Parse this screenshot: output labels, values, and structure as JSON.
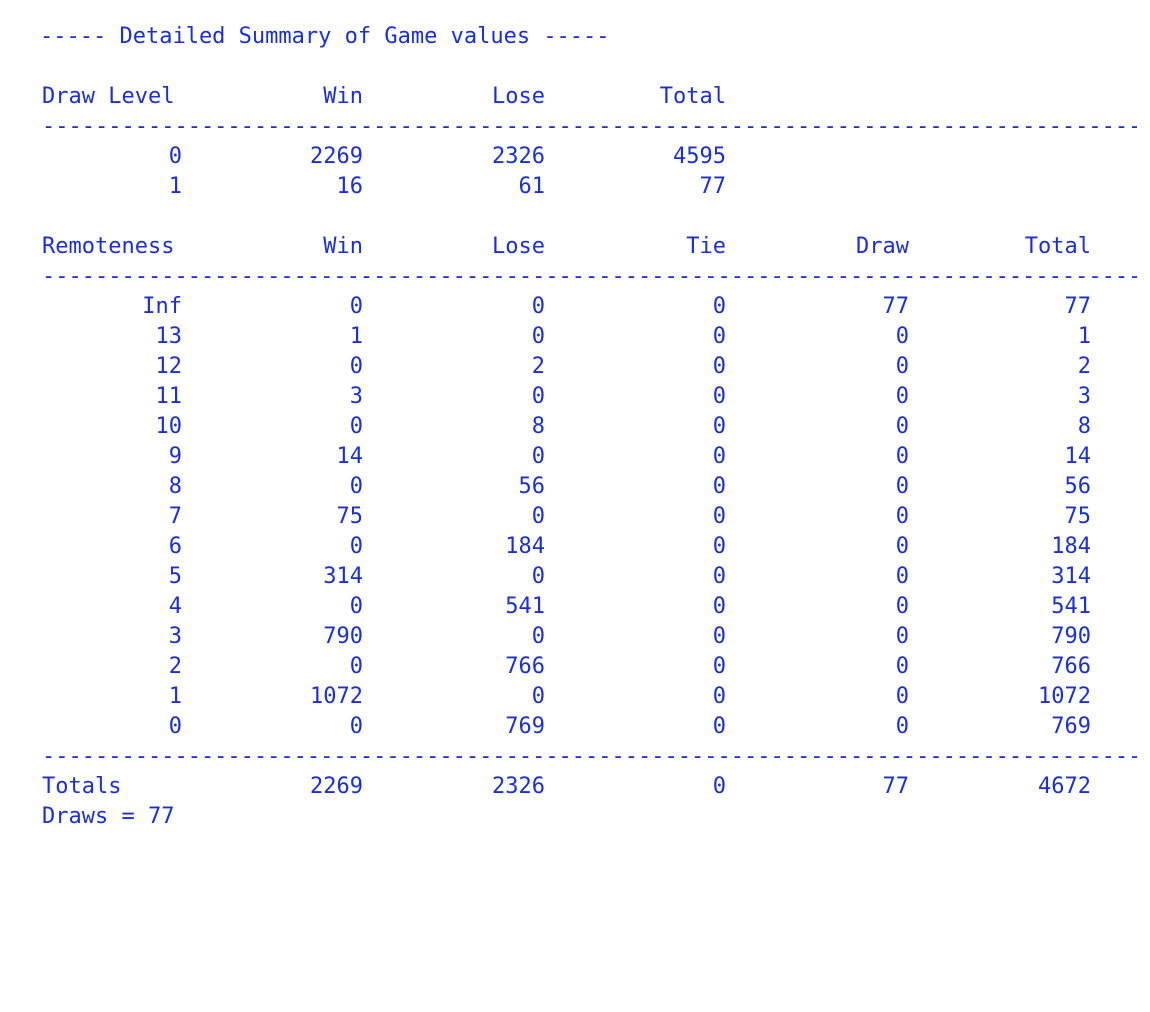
{
  "title": "----- Detailed Summary of Game values -----",
  "separator": "------------------------------------------------------------------------------------------------------------------------",
  "draw_level_table": {
    "headers": [
      "Draw Level",
      "Win",
      "Lose",
      "Total"
    ],
    "rows": [
      [
        "0",
        "2269",
        "2326",
        "4595"
      ],
      [
        "1",
        "16",
        "61",
        "77"
      ]
    ]
  },
  "remoteness_table": {
    "headers": [
      "Remoteness",
      "Win",
      "Lose",
      "Tie",
      "Draw",
      "Total"
    ],
    "rows": [
      [
        "Inf",
        "0",
        "0",
        "0",
        "77",
        "77"
      ],
      [
        "13",
        "1",
        "0",
        "0",
        "0",
        "1"
      ],
      [
        "12",
        "0",
        "2",
        "0",
        "0",
        "2"
      ],
      [
        "11",
        "3",
        "0",
        "0",
        "0",
        "3"
      ],
      [
        "10",
        "0",
        "8",
        "0",
        "0",
        "8"
      ],
      [
        "9",
        "14",
        "0",
        "0",
        "0",
        "14"
      ],
      [
        "8",
        "0",
        "56",
        "0",
        "0",
        "56"
      ],
      [
        "7",
        "75",
        "0",
        "0",
        "0",
        "75"
      ],
      [
        "6",
        "0",
        "184",
        "0",
        "0",
        "184"
      ],
      [
        "5",
        "314",
        "0",
        "0",
        "0",
        "314"
      ],
      [
        "4",
        "0",
        "541",
        "0",
        "0",
        "541"
      ],
      [
        "3",
        "790",
        "0",
        "0",
        "0",
        "790"
      ],
      [
        "2",
        "0",
        "766",
        "0",
        "0",
        "766"
      ],
      [
        "1",
        "1072",
        "0",
        "0",
        "0",
        "1072"
      ],
      [
        "0",
        "0",
        "769",
        "0",
        "0",
        "769"
      ]
    ],
    "totals": [
      "Totals",
      "2269",
      "2326",
      "0",
      "77",
      "4672"
    ]
  },
  "draws_line": "Draws = 77",
  "colors": {
    "text": "#1a2fd6",
    "background": "#ffffff"
  }
}
